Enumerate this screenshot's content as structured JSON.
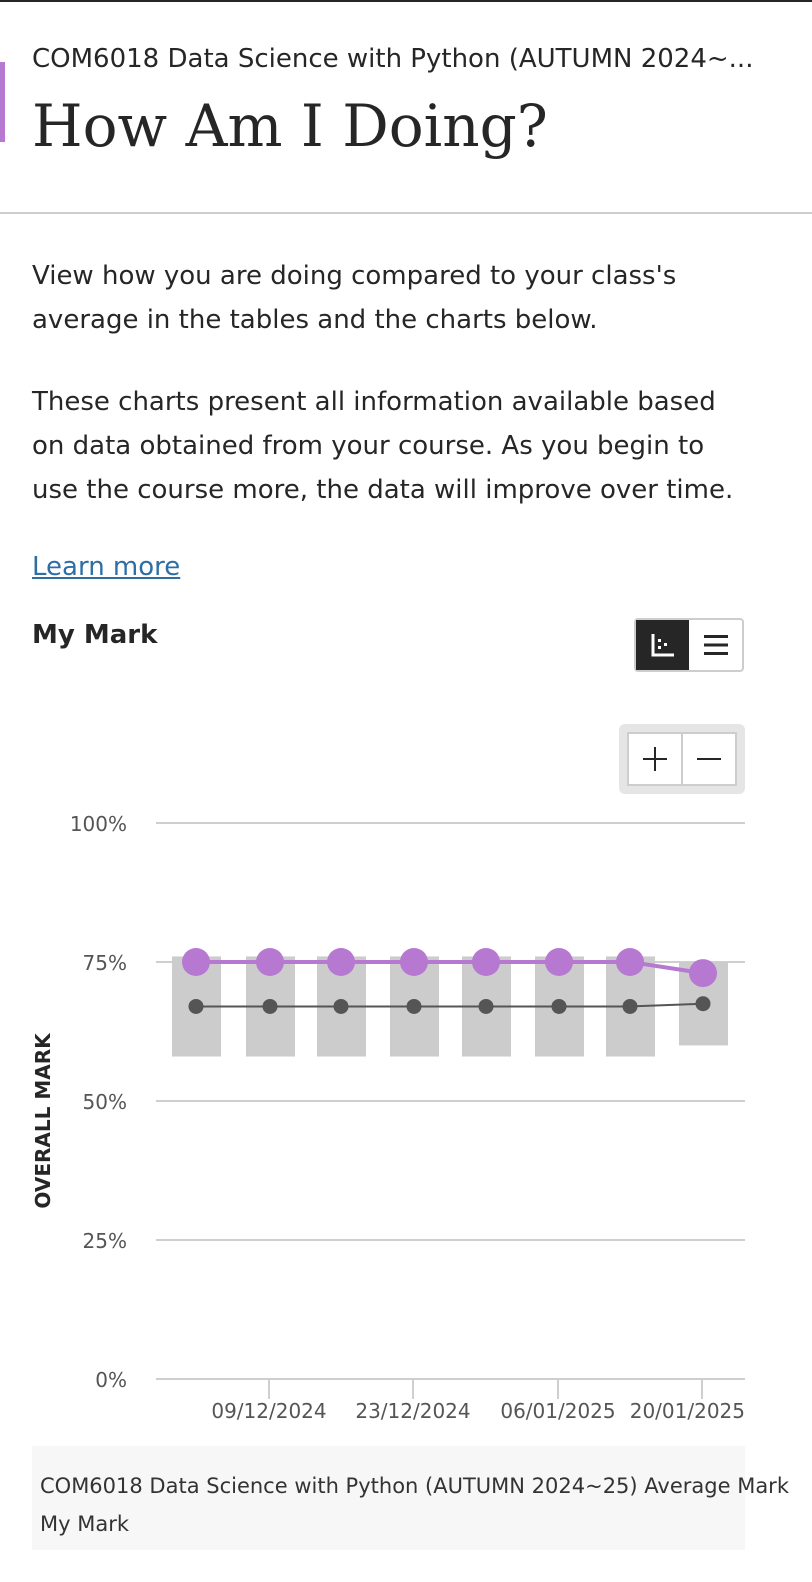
{
  "header": {
    "course_name": "COM6018 Data Science with Python (AUTUMN 2024~25)",
    "course_name_display": "COM6018 Data Science with Python (AUTUMN 2024~...",
    "title": "How Am I Doing?"
  },
  "intro": {
    "paragraph1": "View how you are doing compared to your class's average in the tables and the charts below.",
    "paragraph2": "These charts present all information available based on data obtained from your course. As you begin to use the course more, the data will improve over time.",
    "learn_more": "Learn more"
  },
  "section": {
    "title": "My Mark",
    "view_toggle": [
      {
        "icon": "chart-view-icon",
        "selected": true
      },
      {
        "icon": "table-view-icon",
        "selected": false
      }
    ],
    "zoom": {
      "in_icon": "zoom-in-icon",
      "out_icon": "zoom-out-icon"
    }
  },
  "colors": {
    "accent": "#b678d1",
    "my_mark": "#b678d1",
    "average": "#555555",
    "range_bar": "#cccccc",
    "link": "#2f6ea3"
  },
  "chart_data": {
    "type": "line",
    "ylabel": "OVERALL MARK",
    "ylim": [
      0,
      100
    ],
    "y_ticks": [
      "100%",
      "75%",
      "50%",
      "25%",
      "0%"
    ],
    "x_tick_labels": [
      "09/12/2024",
      "23/12/2024",
      "06/01/2025",
      "20/01/2025"
    ],
    "x": [
      "02/12/2024",
      "09/12/2024",
      "16/12/2024",
      "23/12/2024",
      "30/12/2024",
      "06/01/2025",
      "13/01/2025",
      "20/01/2025"
    ],
    "series": [
      {
        "name": "COM6018 Data Science with Python (AUTUMN 2024~25) Average Mark",
        "kind": "average",
        "values": [
          67,
          67,
          67,
          67,
          67,
          67,
          67,
          67.5
        ]
      },
      {
        "name": "My Mark",
        "kind": "mine",
        "values": [
          75,
          75,
          75,
          75,
          75,
          75,
          75,
          73
        ]
      }
    ],
    "ranges": [
      [
        58,
        76
      ],
      [
        58,
        76
      ],
      [
        58,
        76
      ],
      [
        58,
        76
      ],
      [
        58,
        76
      ],
      [
        58,
        76
      ],
      [
        58,
        76
      ],
      [
        60,
        75
      ]
    ],
    "grid": true,
    "legend_position": "bottom"
  }
}
